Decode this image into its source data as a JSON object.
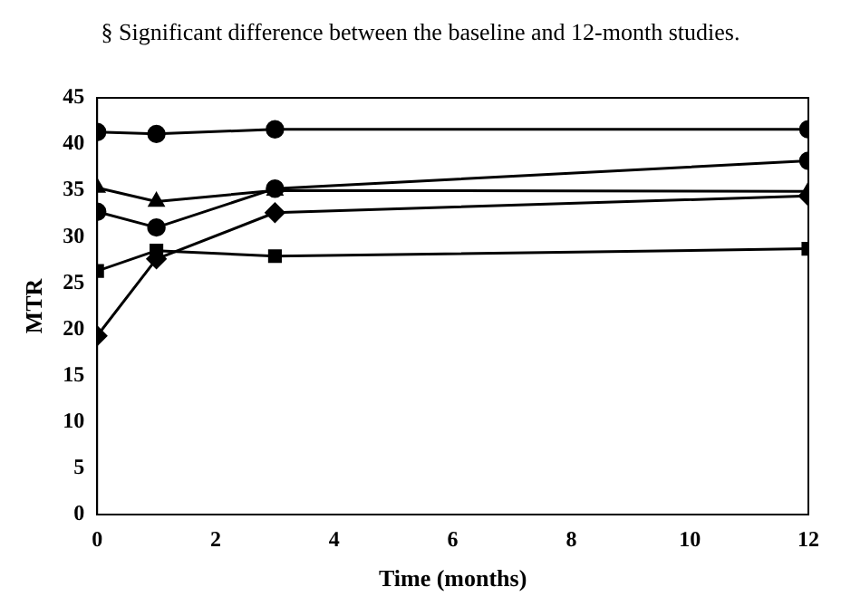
{
  "chart_data": {
    "type": "line",
    "xlabel": "Time (months)",
    "ylabel": "MTR",
    "annotations": [
      "§ Significant difference between the baseline and 12-month studies."
    ],
    "x": [
      0,
      1,
      3,
      12
    ],
    "series": [
      {
        "color": "#000000",
        "marker": "circle",
        "values": [
          41.3,
          41.1,
          41.6,
          41.6
        ]
      },
      {
        "color": "#000000",
        "marker": "triangle",
        "values": [
          35.3,
          33.8,
          35.0,
          34.9
        ]
      },
      {
        "color": "#000000",
        "marker": "circle",
        "values": [
          32.7,
          31.0,
          35.2,
          38.2
        ]
      },
      {
        "color": "#000000",
        "marker": "square",
        "values": [
          26.3,
          28.5,
          27.9,
          28.7
        ]
      },
      {
        "color": "#000000",
        "marker": "diamond",
        "values": [
          19.3,
          27.6,
          32.6,
          34.4
        ]
      }
    ],
    "xlim": [
      0,
      12
    ],
    "xticks": [
      0,
      2,
      4,
      6,
      8,
      10,
      12
    ],
    "ylim": [
      0,
      45
    ],
    "yticks": [
      0,
      5,
      10,
      15,
      20,
      25,
      30,
      35,
      40,
      45
    ],
    "grid": false,
    "legend": false,
    "line_style": "solid"
  }
}
